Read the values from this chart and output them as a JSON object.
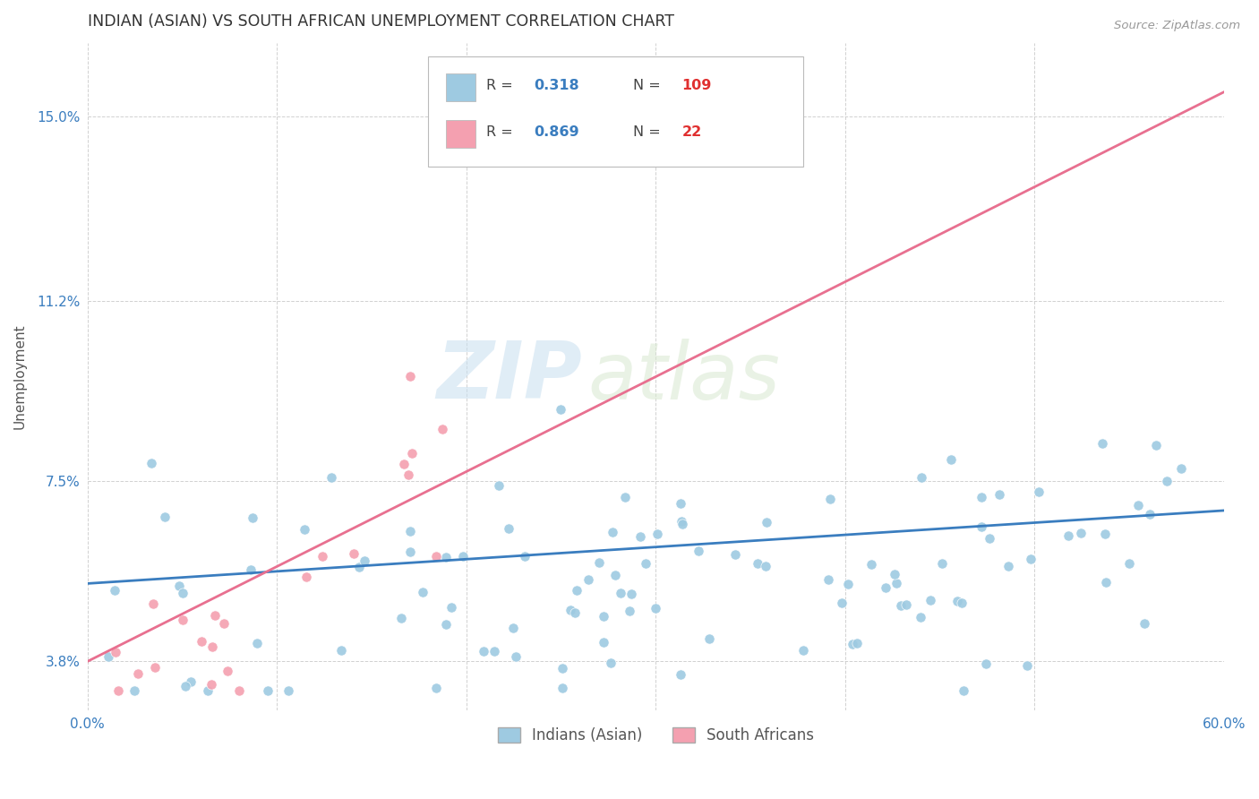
{
  "title": "INDIAN (ASIAN) VS SOUTH AFRICAN UNEMPLOYMENT CORRELATION CHART",
  "source": "Source: ZipAtlas.com",
  "ylabel": "Unemployment",
  "xlim": [
    0.0,
    0.6
  ],
  "ylim": [
    0.028,
    0.165
  ],
  "yticks": [
    0.038,
    0.075,
    0.112,
    0.15
  ],
  "ytick_labels": [
    "3.8%",
    "7.5%",
    "11.2%",
    "15.0%"
  ],
  "xticks": [
    0.0,
    0.1,
    0.2,
    0.3,
    0.4,
    0.5,
    0.6
  ],
  "xtick_labels": [
    "0.0%",
    "",
    "",
    "",
    "",
    "",
    "60.0%"
  ],
  "legend_labels": [
    "Indians (Asian)",
    "South Africans"
  ],
  "indian_color": "#9ecae1",
  "sa_color": "#f4a0b0",
  "indian_line_color": "#3a7dbf",
  "sa_line_color": "#e87090",
  "R_indian": 0.318,
  "N_indian": 109,
  "R_sa": 0.869,
  "N_sa": 22,
  "watermark_zip": "ZIP",
  "watermark_atlas": "atlas",
  "background_color": "#ffffff",
  "grid_color": "#cccccc",
  "title_color": "#333333",
  "axis_label_color": "#555555",
  "tick_label_color": "#3a7dbf",
  "legend_r_color": "#3a7dbf",
  "legend_n_color": "#e03030",
  "indian_line_x0": 0.0,
  "indian_line_x1": 0.6,
  "indian_line_y0": 0.054,
  "indian_line_y1": 0.069,
  "sa_line_x0": 0.0,
  "sa_line_x1": 0.6,
  "sa_line_y0": 0.038,
  "sa_line_y1": 0.155
}
